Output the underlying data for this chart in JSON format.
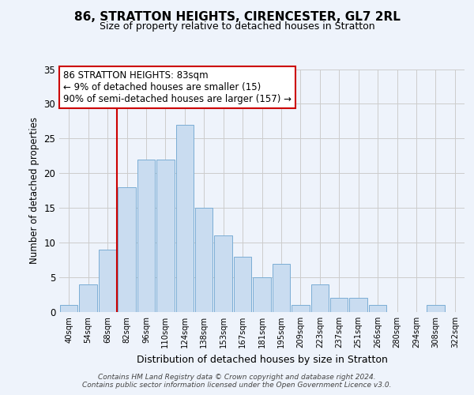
{
  "title": "86, STRATTON HEIGHTS, CIRENCESTER, GL7 2RL",
  "subtitle": "Size of property relative to detached houses in Stratton",
  "xlabel": "Distribution of detached houses by size in Stratton",
  "ylabel": "Number of detached properties",
  "bin_labels": [
    "40sqm",
    "54sqm",
    "68sqm",
    "82sqm",
    "96sqm",
    "110sqm",
    "124sqm",
    "138sqm",
    "153sqm",
    "167sqm",
    "181sqm",
    "195sqm",
    "209sqm",
    "223sqm",
    "237sqm",
    "251sqm",
    "266sqm",
    "280sqm",
    "294sqm",
    "308sqm",
    "322sqm"
  ],
  "bar_heights": [
    1,
    4,
    9,
    18,
    22,
    22,
    27,
    15,
    11,
    8,
    5,
    7,
    1,
    4,
    2,
    2,
    1,
    0,
    0,
    1,
    0
  ],
  "bar_color": "#c9dcf0",
  "bar_edge_color": "#7aadd4",
  "vline_x_index": 3,
  "vline_color": "#cc0000",
  "annotation_text": "86 STRATTON HEIGHTS: 83sqm\n← 9% of detached houses are smaller (15)\n90% of semi-detached houses are larger (157) →",
  "annotation_box_color": "white",
  "annotation_box_edge_color": "#cc0000",
  "ylim": [
    0,
    35
  ],
  "yticks": [
    0,
    5,
    10,
    15,
    20,
    25,
    30,
    35
  ],
  "footer_text": "Contains HM Land Registry data © Crown copyright and database right 2024.\nContains public sector information licensed under the Open Government Licence v3.0.",
  "background_color": "#eef3fb",
  "grid_color": "#cccccc"
}
